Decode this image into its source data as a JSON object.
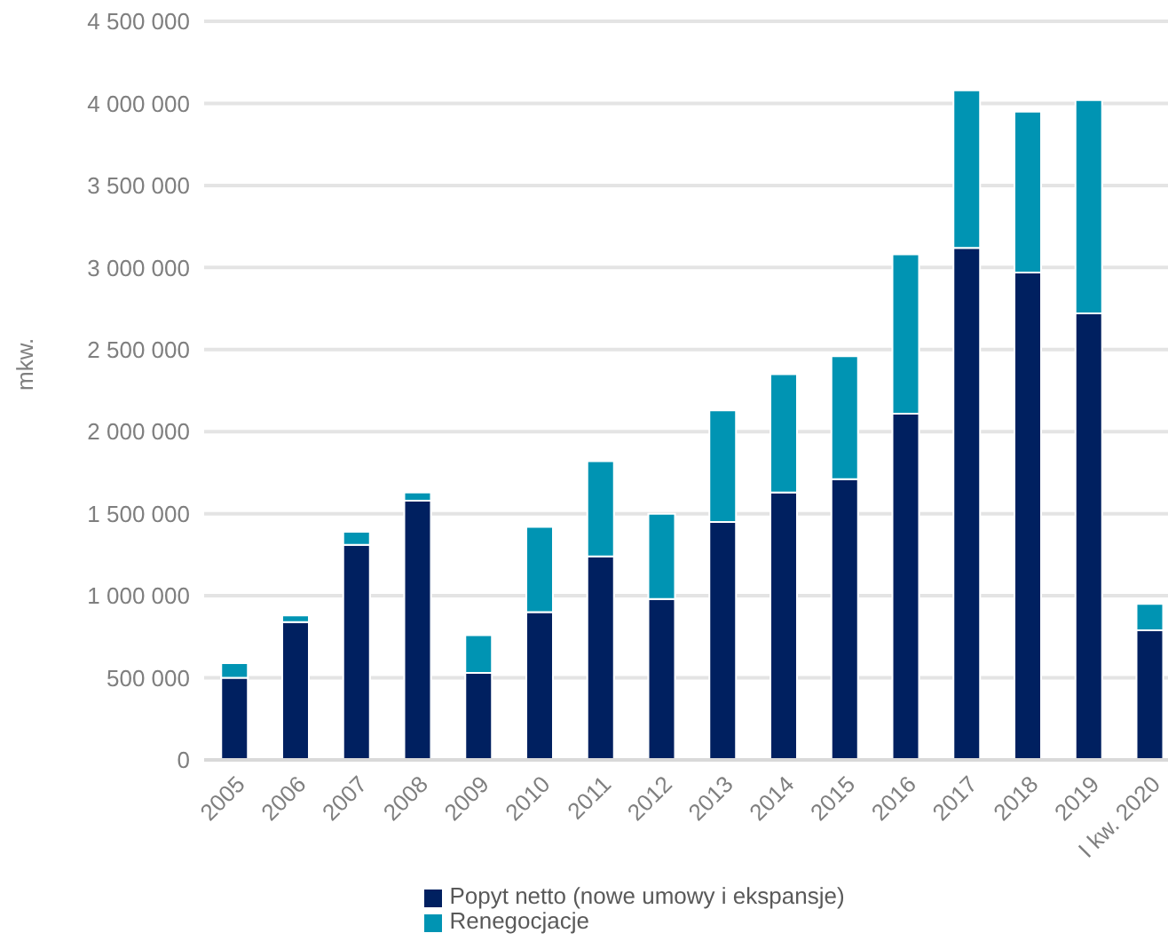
{
  "chart_data": {
    "type": "bar",
    "stacked": true,
    "ylabel": "mkw.",
    "categories": [
      "2005",
      "2006",
      "2007",
      "2008",
      "2009",
      "2010",
      "2011",
      "2012",
      "2013",
      "2014",
      "2015",
      "2016",
      "2017",
      "2018",
      "2019",
      "I kw. 2020"
    ],
    "series": [
      {
        "name": "Popyt netto (nowe umowy i ekspansje)",
        "color": "#002060",
        "values": [
          500000,
          840000,
          1310000,
          1580000,
          530000,
          900000,
          1240000,
          980000,
          1450000,
          1630000,
          1710000,
          2110000,
          3120000,
          2970000,
          2720000,
          790000
        ]
      },
      {
        "name": "Renegocjacje",
        "color": "#0094b3",
        "values": [
          90000,
          40000,
          80000,
          50000,
          230000,
          520000,
          580000,
          520000,
          680000,
          720000,
          750000,
          970000,
          960000,
          980000,
          1300000,
          160000
        ]
      }
    ],
    "ylim": [
      0,
      4500000
    ],
    "yticks": [
      {
        "value": 0,
        "label": "0"
      },
      {
        "value": 500000,
        "label": "500 000"
      },
      {
        "value": 1000000,
        "label": "1 000 000"
      },
      {
        "value": 1500000,
        "label": "1 500 000"
      },
      {
        "value": 2000000,
        "label": "2 000 000"
      },
      {
        "value": 2500000,
        "label": "2 500 000"
      },
      {
        "value": 3000000,
        "label": "3 000 000"
      },
      {
        "value": 3500000,
        "label": "3 500 000"
      },
      {
        "value": 4000000,
        "label": "4 000 000"
      },
      {
        "value": 4500000,
        "label": "4 500 000"
      }
    ],
    "grid": "y",
    "legend": "bottom"
  }
}
